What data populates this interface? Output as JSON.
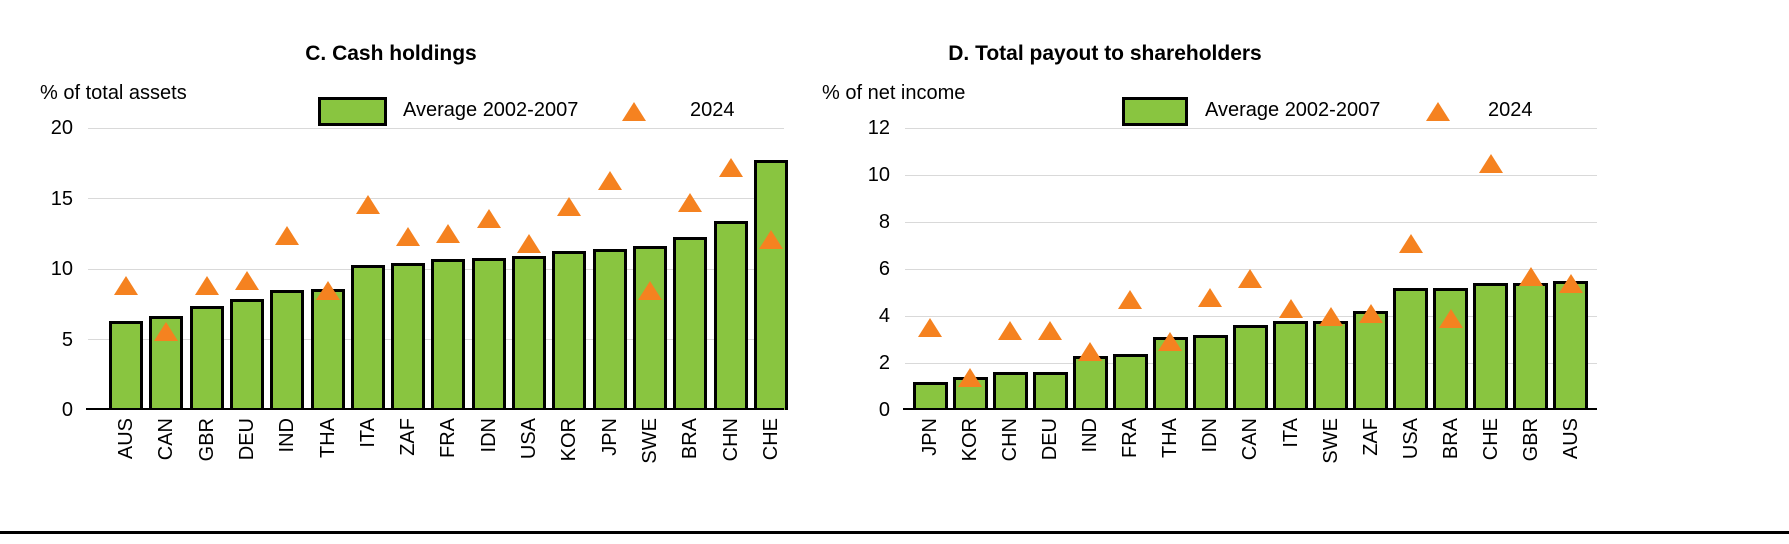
{
  "colors": {
    "bar_fill": "#89C540",
    "bar_border": "#000000",
    "marker_orange": "#F58220",
    "gridline": "#D9D9D9",
    "axis_line": "#000000"
  },
  "chart_data": [
    {
      "type": "bar",
      "title": "C. Cash holdings",
      "unit_label": "% of total assets",
      "legend": {
        "bar_label": "Average 2002-2007",
        "marker_label": "2024"
      },
      "y_axis": {
        "min": 0,
        "max": 20,
        "ticks": [
          20,
          15,
          10,
          5,
          0
        ]
      },
      "grid": true,
      "legend_position": "top",
      "categories": [
        "AUS",
        "CAN",
        "GBR",
        "DEU",
        "IND",
        "THA",
        "ITA",
        "ZAF",
        "FRA",
        "IDN",
        "USA",
        "KOR",
        "JPN",
        "SWE",
        "BRA",
        "CHN",
        "CHE"
      ],
      "series": [
        {
          "name": "Average 2002-2007",
          "type": "bar",
          "values": [
            6.3,
            6.7,
            7.4,
            7.9,
            8.5,
            8.6,
            10.3,
            10.4,
            10.7,
            10.8,
            10.9,
            11.3,
            11.4,
            11.6,
            12.3,
            13.4,
            17.7
          ]
        },
        {
          "name": "2024",
          "type": "triangle-marker",
          "values": [
            8.8,
            5.6,
            8.8,
            9.2,
            12.4,
            8.5,
            14.6,
            12.3,
            12.5,
            13.6,
            11.8,
            14.4,
            16.3,
            8.5,
            14.7,
            17.2,
            12.1
          ]
        }
      ]
    },
    {
      "type": "bar",
      "title": "D. Total payout to shareholders",
      "unit_label": "% of net income",
      "legend": {
        "bar_label": "Average 2002-2007",
        "marker_label": "2024"
      },
      "y_axis": {
        "min": 0,
        "max": 12,
        "ticks": [
          12,
          10,
          8,
          6,
          4,
          2,
          0
        ]
      },
      "grid": true,
      "legend_position": "top",
      "categories": [
        "JPN",
        "KOR",
        "CHN",
        "DEU",
        "IND",
        "FRA",
        "THA",
        "IDN",
        "CAN",
        "ITA",
        "SWE",
        "ZAF",
        "USA",
        "BRA",
        "CHE",
        "GBR",
        "AUS"
      ],
      "series": [
        {
          "name": "Average 2002-2007",
          "type": "bar",
          "values": [
            1.2,
            1.4,
            1.6,
            1.6,
            2.3,
            2.4,
            3.1,
            3.2,
            3.6,
            3.8,
            3.8,
            4.2,
            5.2,
            5.2,
            5.4,
            5.4,
            5.5
          ]
        },
        {
          "name": "2024",
          "type": "triangle-marker",
          "values": [
            3.5,
            1.4,
            3.4,
            3.4,
            2.5,
            4.7,
            2.9,
            4.8,
            5.6,
            4.3,
            4.0,
            4.1,
            7.1,
            3.9,
            10.5,
            5.7,
            5.4
          ]
        }
      ]
    }
  ]
}
